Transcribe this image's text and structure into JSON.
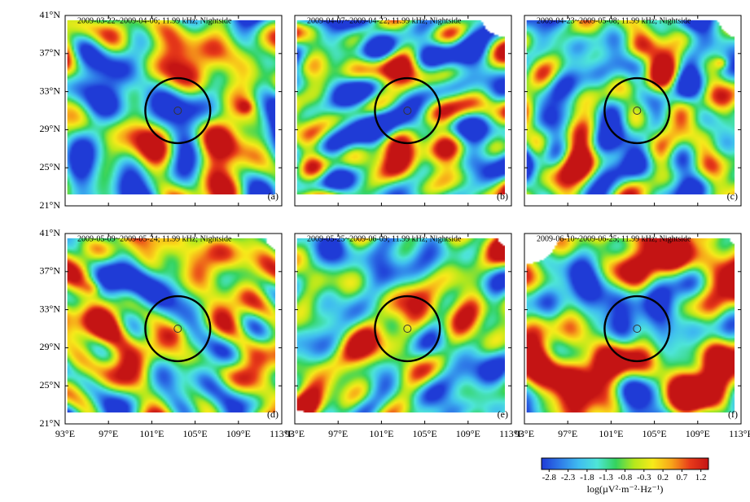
{
  "chart_data": {
    "type": "heatmap",
    "frequency": "11.99 kHz",
    "side": "Nightside",
    "x_ticks": [
      "93°E",
      "97°E",
      "101°E",
      "105°E",
      "109°E",
      "113°E"
    ],
    "y_ticks": [
      "21°N",
      "25°N",
      "29°N",
      "33°N",
      "37°N",
      "41°N"
    ],
    "x_range": [
      93,
      113
    ],
    "y_range": [
      21,
      41
    ],
    "epicenter": {
      "lon": 103.4,
      "lat": 31.0
    },
    "circle_radius_deg": 3.0,
    "colorbar": {
      "ticks": [
        "-2.8",
        "-2.3",
        "-1.8",
        "-1.3",
        "-0.8",
        "-0.3",
        "0.2",
        "0.7",
        "1.2"
      ],
      "range": [
        -3.0,
        1.4
      ],
      "label": "log(µV²·m⁻²·Hz⁻¹)",
      "colors": [
        "#1f3bd6",
        "#2f7be8",
        "#3fbcf0",
        "#4ee5d8",
        "#34d35e",
        "#b5e81c",
        "#f7ea1a",
        "#f7a51a",
        "#e83b1a",
        "#c41414"
      ]
    },
    "panels": [
      {
        "letter": "(a)",
        "title": "2009-03-22~2009-04-06; 11.99 kHz; Nightside",
        "seed": 11,
        "bias": -0.25,
        "features": [
          {
            "lon": 97.5,
            "lat": 30,
            "s": 0.9,
            "r": 2.0
          },
          {
            "lon": 103.5,
            "lat": 37.5,
            "s": 0.9,
            "r": 1.5
          },
          {
            "lon": 109.7,
            "lat": 31.4,
            "s": 1.2,
            "r": 0.7
          },
          {
            "lon": 94.5,
            "lat": 39.5,
            "s": 0.8,
            "r": 1.6
          }
        ],
        "mask": []
      },
      {
        "letter": "(b)",
        "title": "2009-04-07~2009-04-22; 11.99 kHz; Nightside",
        "seed": 23,
        "bias": -0.55,
        "features": [
          {
            "lon": 108,
            "lat": 25.5,
            "s": 1.8,
            "r": 2.6
          },
          {
            "lon": 106.5,
            "lat": 29.5,
            "s": 1.3,
            "r": 2.0
          },
          {
            "lon": 95,
            "lat": 24.5,
            "s": 1.7,
            "r": 1.6
          },
          {
            "lon": 112.5,
            "lat": 36.5,
            "s": 1.0,
            "r": 1.3
          }
        ],
        "mask": [
          {
            "lon": 112.4,
            "lat": 41,
            "r": 2.2
          }
        ]
      },
      {
        "letter": "(c)",
        "title": "2009-04-23~2009-05-08; 11.99 kHz; Nightside",
        "seed": 37,
        "bias": -0.35,
        "features": [
          {
            "lon": 111.2,
            "lat": 36.0,
            "s": 1.6,
            "r": 0.6
          },
          {
            "lon": 103.5,
            "lat": 37.5,
            "s": 0.9,
            "r": 1.5
          },
          {
            "lon": 108.5,
            "lat": 38.5,
            "s": 0.8,
            "r": 1.6
          }
        ],
        "mask": [
          {
            "lon": 113.2,
            "lat": 41,
            "r": 2.4
          }
        ]
      },
      {
        "letter": "(d)",
        "title": "2009-05-09~2009-05-24; 11.99 kHz; Nightside",
        "seed": 41,
        "bias": 0.05,
        "features": [
          {
            "lon": 95.5,
            "lat": 35.3,
            "s": 1.2,
            "r": 0.8
          },
          {
            "lon": 103.2,
            "lat": 30.5,
            "s": 1.4,
            "r": 1.2
          },
          {
            "lon": 101.2,
            "lat": 28.5,
            "s": 0.9,
            "r": 1.8
          },
          {
            "lon": 94.5,
            "lat": 27,
            "s": 0.6,
            "r": 2.0
          }
        ],
        "mask": [
          {
            "lon": 113.2,
            "lat": 41,
            "r": 1.8
          }
        ]
      },
      {
        "letter": "(e)",
        "title": "2009-05-25~2009-06-09; 11.99 kHz; Nightside",
        "seed": 53,
        "bias": -0.15,
        "features": [
          {
            "lon": 99.5,
            "lat": 31,
            "s": 0.7,
            "r": 2.2
          },
          {
            "lon": 110,
            "lat": 33.5,
            "s": 0.5,
            "r": 2.0
          },
          {
            "lon": 100.5,
            "lat": 23.5,
            "s": 0.6,
            "r": 1.5
          }
        ],
        "mask": [
          {
            "lon": 93,
            "lat": 21,
            "r": 1.5
          },
          {
            "lon": 113.2,
            "lat": 41,
            "r": 1.6
          }
        ]
      },
      {
        "letter": "(f)",
        "title": "2009-06-10~2009-06-25; 11.99 kHz; Nightside",
        "seed": 67,
        "bias": 0.25,
        "features": [
          {
            "lon": 98,
            "lat": 29.5,
            "s": 1.0,
            "r": 2.4
          },
          {
            "lon": 109.5,
            "lat": 24.5,
            "s": 1.3,
            "r": 2.0
          },
          {
            "lon": 107,
            "lat": 28,
            "s": 0.9,
            "r": 2.0
          },
          {
            "lon": 101.5,
            "lat": 39.5,
            "s": 0.6,
            "r": 1.6
          }
        ],
        "mask": [
          {
            "lon": 93,
            "lat": 41,
            "r": 3.2
          },
          {
            "lon": 113.2,
            "lat": 41,
            "r": 1.4
          }
        ]
      }
    ]
  }
}
